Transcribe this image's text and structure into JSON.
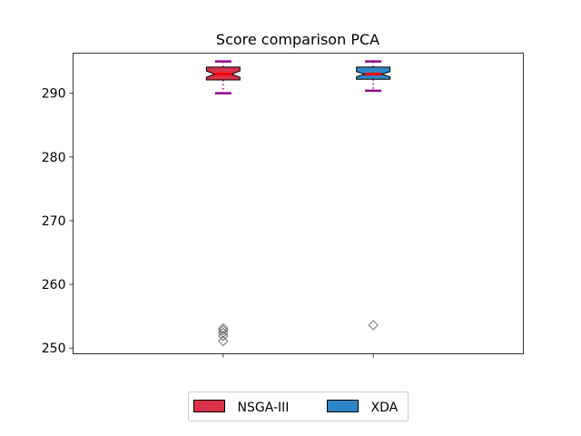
{
  "chart_data": {
    "type": "box",
    "title": "Score comparison PCA",
    "xlabel": "",
    "ylabel": "",
    "ylim": [
      249.1,
      296.3
    ],
    "yticks": [
      250,
      260,
      270,
      280,
      290
    ],
    "grid": false,
    "legend_placement": "bottom-center",
    "series": [
      {
        "name": "NSGA-III",
        "color": "#d9314a",
        "median_color": "#ff0000",
        "whisker_color": "#8b008b",
        "whisker_low": 290.0,
        "q1": 292.1,
        "median": 293.0,
        "q3": 294.1,
        "whisker_high": 295.0,
        "notch_low": 292.5,
        "notch_high": 293.5,
        "outliers": [
          251.1,
          251.9,
          252.4,
          252.8,
          253.1
        ]
      },
      {
        "name": "XDA",
        "color": "#2f86c6",
        "median_color": "#ff0000",
        "whisker_color": "#8b008b",
        "whisker_low": 290.4,
        "q1": 292.2,
        "median": 293.0,
        "q3": 294.1,
        "whisker_high": 295.0,
        "notch_low": 292.6,
        "notch_high": 293.4,
        "outliers": [
          253.6
        ]
      }
    ]
  }
}
